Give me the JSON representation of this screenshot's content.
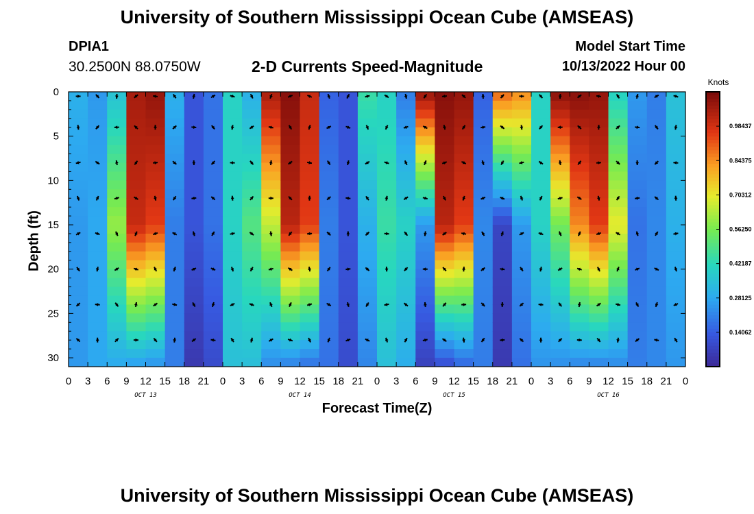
{
  "header": {
    "title": "University of Southern Mississippi Ocean Cube (AMSEAS)",
    "station_id": "DPIA1",
    "coordinates": "30.2500N  88.0750W",
    "plot_title": "2-D Currents Speed-Magnitude",
    "model_start_label": "Model Start Time",
    "model_start_value": "10/13/2022 Hour 00"
  },
  "footer": {
    "title": "University of Southern Mississippi Ocean Cube (AMSEAS)"
  },
  "chart_data": {
    "type": "heatmap",
    "title": "2-D Currents Speed-Magnitude",
    "xlabel": "Forecast Time(Z)",
    "ylabel": "Depth (ft)",
    "x_ticks": [
      "0",
      "3",
      "6",
      "9",
      "12",
      "15",
      "18",
      "21",
      "0",
      "3",
      "6",
      "9",
      "12",
      "15",
      "18",
      "21",
      "0",
      "3",
      "6",
      "9",
      "12",
      "15",
      "18",
      "21",
      "0",
      "3",
      "6",
      "9",
      "12",
      "15",
      "18",
      "21",
      "0"
    ],
    "day_labels": [
      "OCT 13",
      "OCT 14",
      "OCT 15",
      "OCT 16"
    ],
    "y_ticks": [
      "0",
      "5",
      "10",
      "15",
      "20",
      "25",
      "30"
    ],
    "ylim": [
      0,
      31
    ],
    "xlim_hours": [
      0,
      96
    ],
    "colorbar": {
      "title": "Knots",
      "ticks": [
        "0.14062",
        "0.28125",
        "0.42187",
        "0.56250",
        "0.70312",
        "0.84375",
        "0.98437"
      ],
      "min": 0,
      "max": 1.125
    },
    "vector_depths": [
      0.5,
      4,
      8,
      12,
      16,
      20,
      24,
      28
    ],
    "speed_series": [
      {
        "name": "surface",
        "depth": 0,
        "values": [
          0.3,
          0.25,
          0.35,
          1.05,
          1.08,
          0.3,
          0.12,
          0.18,
          0.4,
          0.3,
          1.05,
          1.1,
          1.0,
          0.15,
          0.12,
          0.45,
          0.4,
          0.2,
          1.08,
          1.1,
          1.08,
          0.15,
          0.9,
          0.85,
          0.4,
          1.1,
          1.1,
          1.08,
          0.4,
          0.25,
          0.2,
          0.35
        ]
      },
      {
        "name": "mid",
        "depth": 15,
        "values": [
          0.25,
          0.28,
          0.6,
          1.0,
          0.95,
          0.2,
          0.12,
          0.18,
          0.4,
          0.5,
          0.65,
          1.02,
          0.95,
          0.2,
          0.12,
          0.3,
          0.45,
          0.4,
          0.25,
          1.02,
          0.95,
          0.22,
          0.08,
          0.25,
          0.4,
          0.55,
          0.85,
          0.95,
          0.7,
          0.18,
          0.22,
          0.3
        ]
      },
      {
        "name": "bottom",
        "depth": 30,
        "values": [
          0.25,
          0.28,
          0.3,
          0.3,
          0.28,
          0.2,
          0.05,
          0.1,
          0.35,
          0.35,
          0.25,
          0.25,
          0.22,
          0.18,
          0.1,
          0.22,
          0.35,
          0.3,
          0.08,
          0.15,
          0.2,
          0.2,
          0.05,
          0.18,
          0.25,
          0.25,
          0.25,
          0.25,
          0.25,
          0.2,
          0.22,
          0.25
        ]
      }
    ]
  }
}
